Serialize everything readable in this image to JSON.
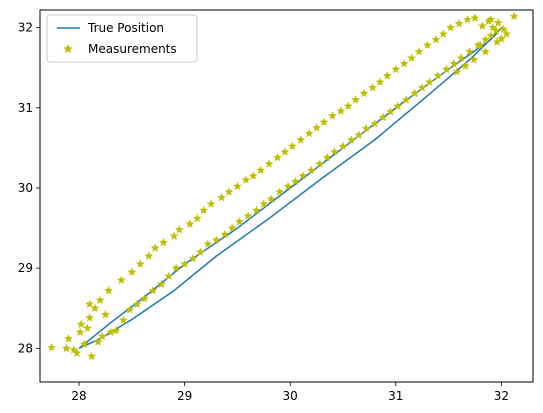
{
  "chart_data": {
    "type": "line",
    "title": "",
    "xlabel": "",
    "ylabel": "",
    "xlim": [
      27.63,
      32.3
    ],
    "ylim": [
      27.58,
      32.22
    ],
    "xticks": [
      28,
      29,
      30,
      31,
      32
    ],
    "yticks": [
      28,
      29,
      30,
      31,
      32
    ],
    "xtick_labels": [
      "28",
      "29",
      "30",
      "31",
      "32"
    ],
    "ytick_labels": [
      "28",
      "29",
      "30",
      "31",
      "32"
    ],
    "grid": false,
    "legend_placement": "top-left",
    "series": [
      {
        "name": "True Position",
        "kind": "line",
        "color": "#1f77b4",
        "x": [
          28.0,
          28.3,
          28.6,
          29.0,
          29.5,
          30.0,
          30.5,
          31.0,
          31.5,
          31.9,
          32.0,
          31.95,
          31.7,
          31.3,
          30.8,
          30.3,
          29.8,
          29.3,
          28.9,
          28.5,
          28.2,
          28.0
        ],
        "y": [
          28.0,
          28.32,
          28.62,
          29.05,
          29.5,
          30.0,
          30.5,
          31.0,
          31.48,
          31.85,
          32.0,
          31.92,
          31.6,
          31.15,
          30.6,
          30.12,
          29.62,
          29.15,
          28.72,
          28.36,
          28.12,
          28.0
        ]
      },
      {
        "name": "Measurements",
        "kind": "scatter",
        "marker": "star",
        "color": "#bfbf00",
        "x": [
          27.74,
          27.98,
          28.05,
          27.9,
          28.12,
          28.01,
          27.95,
          28.18,
          28.08,
          27.88,
          28.22,
          28.1,
          28.3,
          28.15,
          28.02,
          28.25,
          28.35,
          28.2,
          28.42,
          28.1,
          28.48,
          28.28,
          28.55,
          28.4,
          28.62,
          28.5,
          28.7,
          28.58,
          28.78,
          28.66,
          28.85,
          28.72,
          28.92,
          28.8,
          29.0,
          28.9,
          29.08,
          28.95,
          29.15,
          29.05,
          29.22,
          29.12,
          29.3,
          29.18,
          29.38,
          29.25,
          29.45,
          29.35,
          29.52,
          29.42,
          29.6,
          29.5,
          29.68,
          29.58,
          29.75,
          29.65,
          29.82,
          29.72,
          29.9,
          29.8,
          29.98,
          29.88,
          30.05,
          29.95,
          30.12,
          30.02,
          30.2,
          30.1,
          30.28,
          30.18,
          30.35,
          30.25,
          30.42,
          30.32,
          30.5,
          30.4,
          30.58,
          30.48,
          30.65,
          30.55,
          30.72,
          30.62,
          30.8,
          30.7,
          30.88,
          30.78,
          30.95,
          30.85,
          31.02,
          30.92,
          31.1,
          31.0,
          31.18,
          31.08,
          31.25,
          31.15,
          31.32,
          31.22,
          31.4,
          31.3,
          31.48,
          31.38,
          31.55,
          31.45,
          31.62,
          31.52,
          31.7,
          31.6,
          31.78,
          31.68,
          31.85,
          31.75,
          31.9,
          31.82,
          31.95,
          31.88,
          32.0,
          31.92,
          32.05,
          31.97,
          32.12,
          31.85,
          31.8,
          31.96,
          32.02,
          31.9,
          31.74,
          31.66,
          31.58
        ],
        "y": [
          28.01,
          27.94,
          28.05,
          28.12,
          27.9,
          28.2,
          27.98,
          28.08,
          28.25,
          28.0,
          28.15,
          28.38,
          28.2,
          28.5,
          28.3,
          28.42,
          28.22,
          28.6,
          28.35,
          28.55,
          28.48,
          28.72,
          28.55,
          28.85,
          28.62,
          28.95,
          28.72,
          29.05,
          28.8,
          29.15,
          28.9,
          29.25,
          29.0,
          29.32,
          29.05,
          29.4,
          29.12,
          29.48,
          29.2,
          29.55,
          29.3,
          29.62,
          29.35,
          29.72,
          29.42,
          29.8,
          29.5,
          29.88,
          29.58,
          29.95,
          29.65,
          30.02,
          29.72,
          30.1,
          29.8,
          30.15,
          29.86,
          30.22,
          29.95,
          30.3,
          30.02,
          30.38,
          30.08,
          30.45,
          30.15,
          30.52,
          30.22,
          30.6,
          30.3,
          30.68,
          30.38,
          30.75,
          30.45,
          30.82,
          30.52,
          30.9,
          30.6,
          30.96,
          30.66,
          31.02,
          30.74,
          31.1,
          30.8,
          31.18,
          30.88,
          31.25,
          30.95,
          31.32,
          31.02,
          31.4,
          31.1,
          31.48,
          31.18,
          31.55,
          31.25,
          31.62,
          31.32,
          31.7,
          31.4,
          31.78,
          31.48,
          31.85,
          31.55,
          31.92,
          31.62,
          32.0,
          31.7,
          32.05,
          31.78,
          32.1,
          31.85,
          32.12,
          31.9,
          32.02,
          31.96,
          32.08,
          31.86,
          32.0,
          31.92,
          32.06,
          32.14,
          31.7,
          31.78,
          31.82,
          31.98,
          32.1,
          31.6,
          31.52,
          31.45
        ]
      }
    ]
  }
}
